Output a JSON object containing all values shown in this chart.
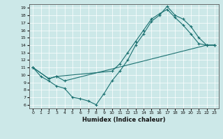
{
  "xlabel": "Humidex (Indice chaleur)",
  "bg_color": "#cce8e8",
  "line_color": "#1a7070",
  "xlim": [
    -0.5,
    23.5
  ],
  "ylim": [
    5.5,
    19.5
  ],
  "xticks": [
    0,
    1,
    2,
    3,
    4,
    5,
    6,
    7,
    8,
    9,
    10,
    11,
    12,
    13,
    14,
    15,
    16,
    17,
    18,
    19,
    20,
    21,
    22,
    23
  ],
  "yticks": [
    6,
    7,
    8,
    9,
    10,
    11,
    12,
    13,
    14,
    15,
    16,
    17,
    18,
    19
  ],
  "lines": [
    {
      "x": [
        0,
        1,
        2,
        3,
        4,
        5,
        6,
        7,
        8,
        9,
        10,
        11,
        12,
        13,
        14,
        15,
        16,
        17,
        18,
        19,
        20,
        21,
        22,
        23
      ],
      "y": [
        11,
        9.8,
        9.2,
        8.5,
        8.2,
        7.0,
        6.8,
        6.5,
        6.0,
        7.5,
        9.2,
        10.5,
        12.0,
        14.0,
        15.5,
        17.2,
        18.0,
        19.2,
        18.0,
        17.5,
        16.5,
        15.0,
        14.0,
        14.0
      ]
    },
    {
      "x": [
        0,
        2,
        3,
        10,
        11,
        12,
        13,
        14,
        15,
        16,
        17,
        18,
        19,
        20,
        21,
        22,
        23
      ],
      "y": [
        11,
        9.5,
        9.8,
        10.5,
        11.5,
        13.0,
        14.5,
        16.0,
        17.5,
        18.2,
        18.8,
        17.7,
        16.7,
        15.5,
        14.2,
        14.0,
        14.0
      ]
    },
    {
      "x": [
        0,
        2,
        3,
        4,
        22,
        23
      ],
      "y": [
        11,
        9.5,
        9.8,
        9.2,
        14.0,
        14.0
      ]
    }
  ]
}
